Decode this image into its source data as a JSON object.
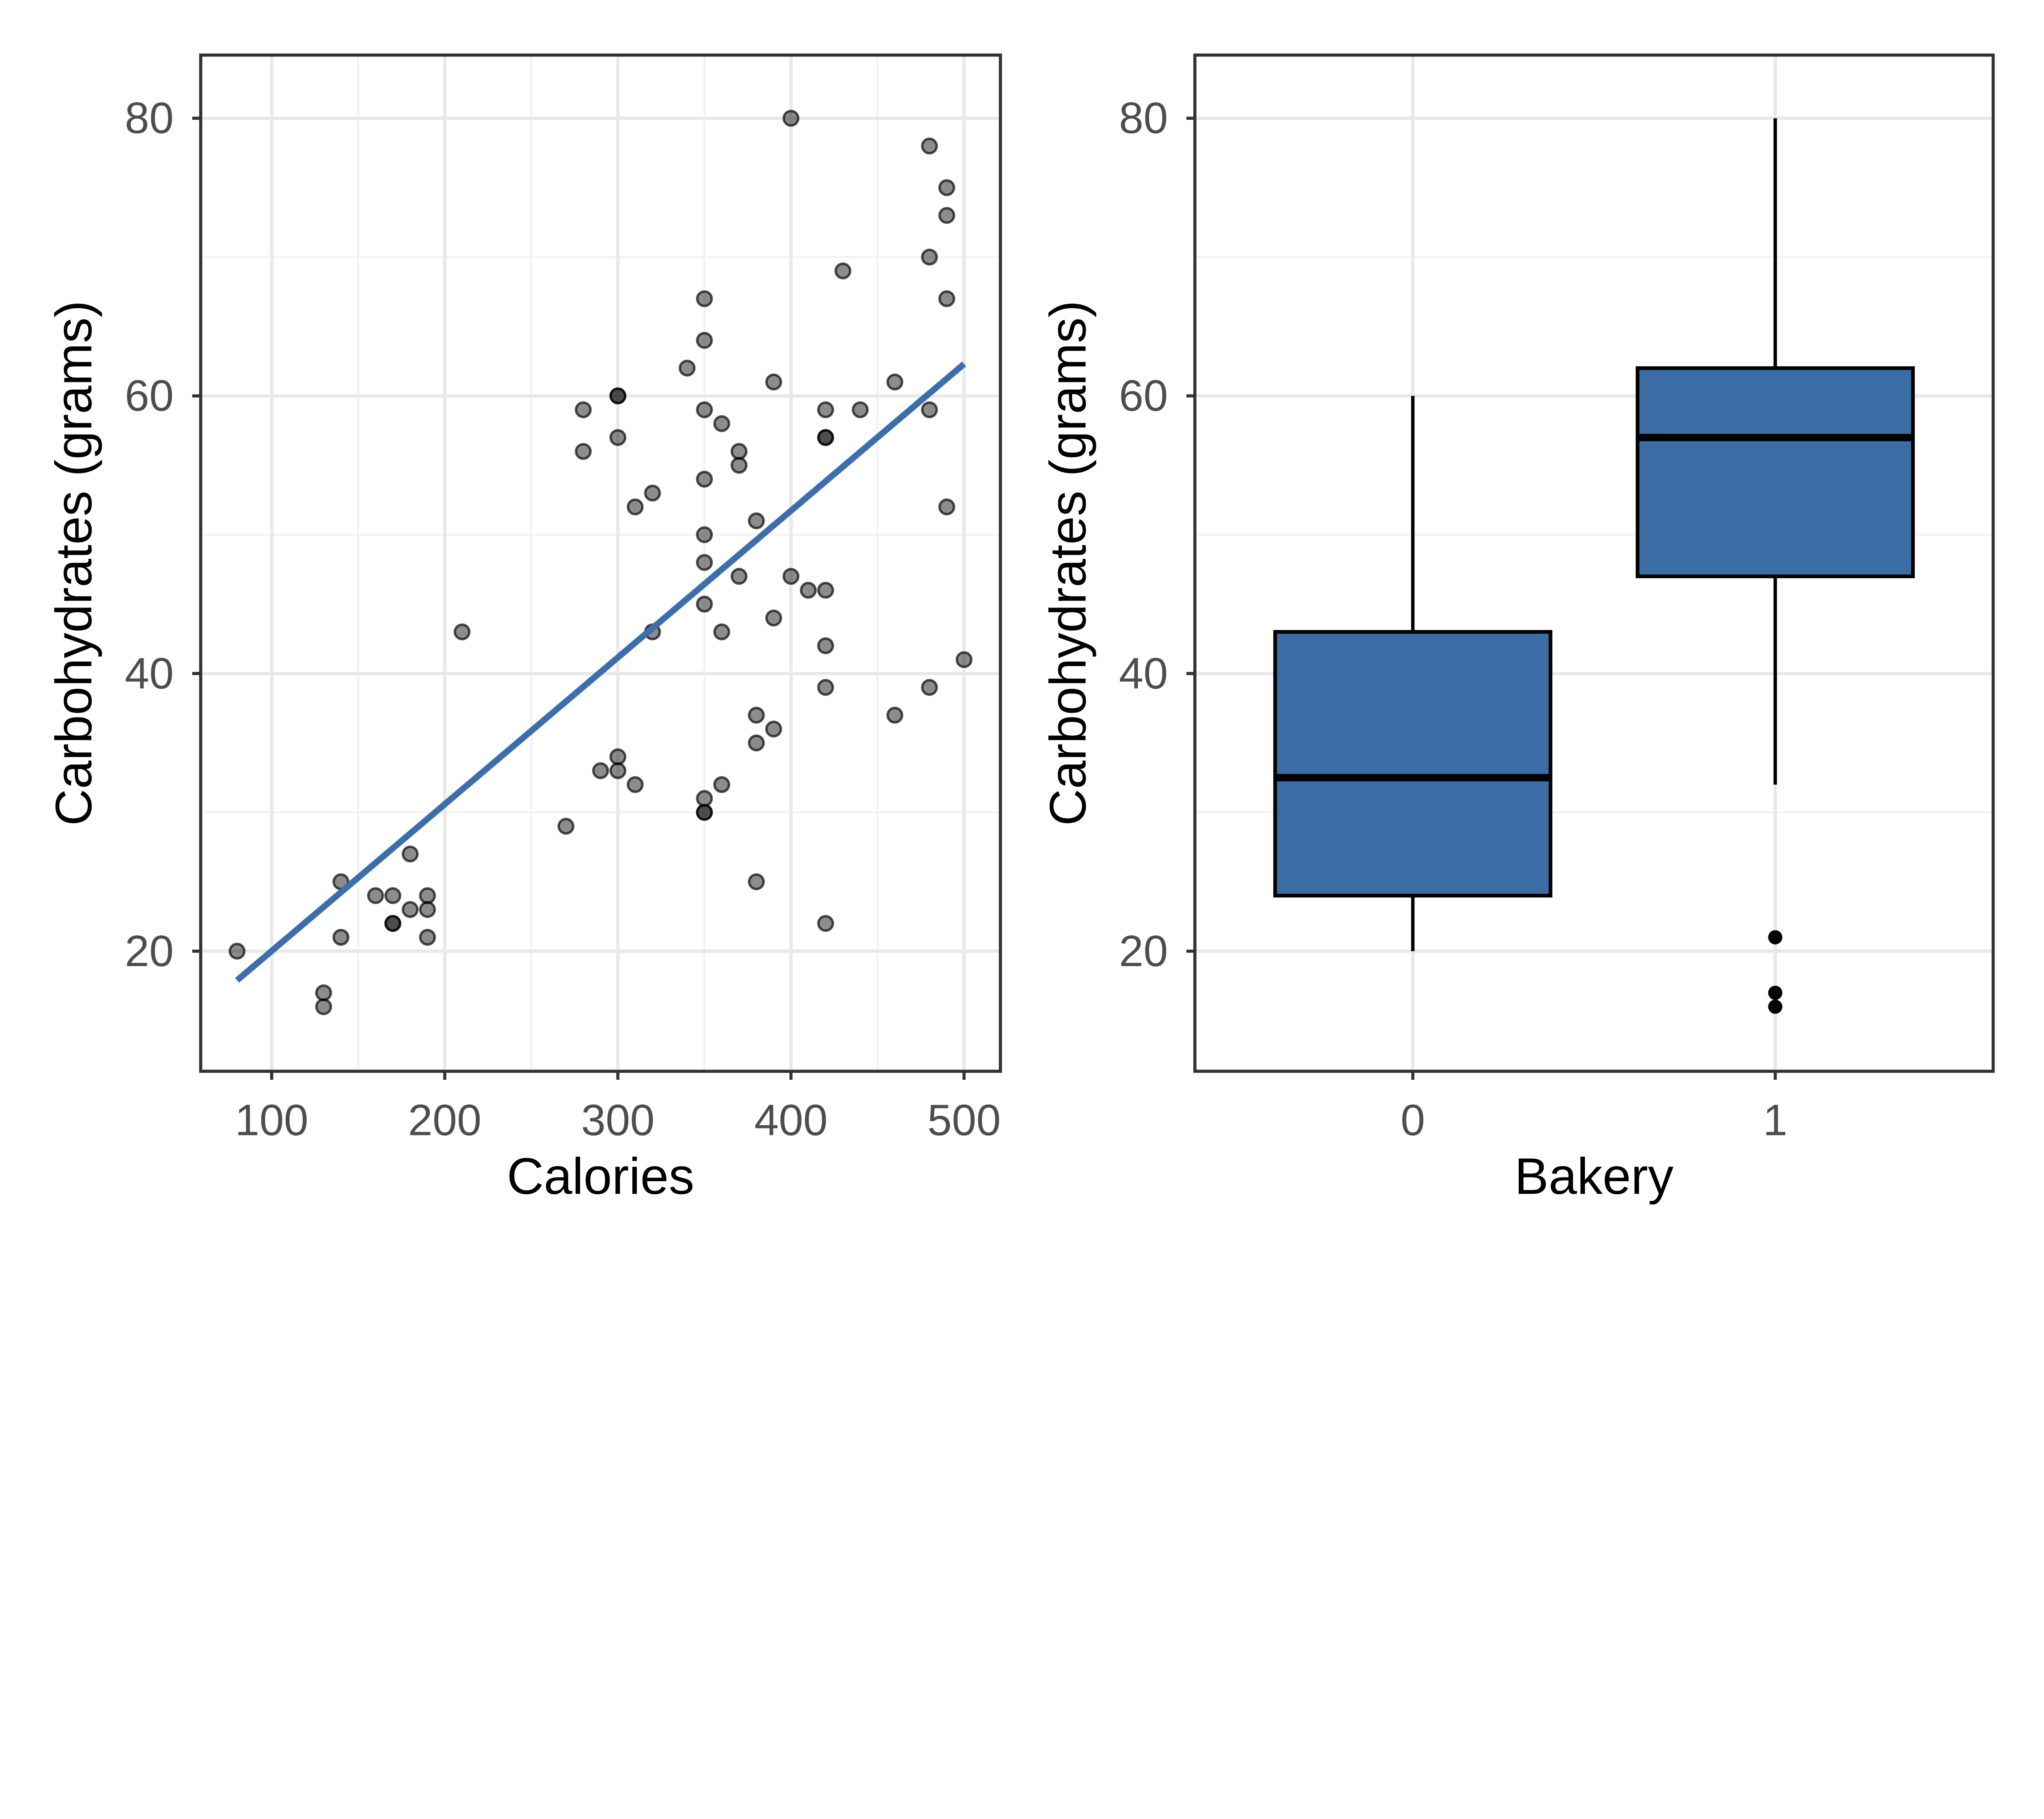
{
  "figure": {
    "background": "#FFFFFF"
  },
  "style": {
    "regression_line_color": "#3B6EAA",
    "box_fill_color": "#3B6DA5",
    "grid_major_color": "#E9E9E9",
    "grid_minor_color": "#F2F2F2",
    "panel_border_color": "#333333",
    "tick_mark_color": "#333333",
    "tick_label_color": "#4D4D4D",
    "axis_title_color": "#000000",
    "point_color": "#000000",
    "outlier_color": "#000000"
  },
  "chart_data": [
    {
      "type": "scatter",
      "title": "",
      "xlabel": "Calories",
      "ylabel": "Carbohydrates (grams)",
      "x_tick_labels": [
        "100",
        "200",
        "300",
        "400",
        "500"
      ],
      "x_ticks": [
        100,
        200,
        300,
        400,
        500
      ],
      "x_minor": [
        150,
        250,
        350,
        450
      ],
      "y_tick_labels": [
        "20",
        "40",
        "60",
        "80"
      ],
      "y_ticks": [
        20,
        40,
        60,
        80
      ],
      "y_minor": [
        30,
        50,
        70
      ],
      "xlim": [
        59,
        521
      ],
      "ylim": [
        11.35,
        84.55
      ],
      "grid": true,
      "legend": "none",
      "points": [
        [
          80,
          20
        ],
        [
          130,
          17
        ],
        [
          130,
          16
        ],
        [
          140,
          25
        ],
        [
          140,
          21
        ],
        [
          160,
          24
        ],
        [
          170,
          24
        ],
        [
          170,
          22
        ],
        [
          170,
          22
        ],
        [
          180,
          27
        ],
        [
          180,
          23
        ],
        [
          190,
          24
        ],
        [
          190,
          23
        ],
        [
          190,
          21
        ],
        [
          210,
          43
        ],
        [
          270,
          29
        ],
        [
          290,
          33
        ],
        [
          300,
          34
        ],
        [
          300,
          33
        ],
        [
          310,
          32
        ],
        [
          320,
          43
        ],
        [
          350,
          45
        ],
        [
          360,
          43
        ],
        [
          370,
          47
        ],
        [
          400,
          47
        ],
        [
          410,
          46
        ],
        [
          420,
          46
        ],
        [
          390,
          44
        ],
        [
          420,
          42
        ],
        [
          500,
          41
        ],
        [
          420,
          39
        ],
        [
          480,
          39
        ],
        [
          460,
          37
        ],
        [
          380,
          37
        ],
        [
          390,
          36
        ],
        [
          380,
          35
        ],
        [
          360,
          32
        ],
        [
          350,
          31
        ],
        [
          350,
          30
        ],
        [
          350,
          30
        ],
        [
          380,
          25
        ],
        [
          420,
          22
        ],
        [
          400,
          80
        ],
        [
          480,
          78
        ],
        [
          490,
          75
        ],
        [
          490,
          73
        ],
        [
          480,
          70
        ],
        [
          430,
          69
        ],
        [
          350,
          67
        ],
        [
          490,
          67
        ],
        [
          350,
          64
        ],
        [
          340,
          62
        ],
        [
          390,
          61
        ],
        [
          460,
          61
        ],
        [
          300,
          60
        ],
        [
          300,
          60
        ],
        [
          280,
          59
        ],
        [
          350,
          59
        ],
        [
          420,
          59
        ],
        [
          440,
          59
        ],
        [
          480,
          59
        ],
        [
          300,
          57
        ],
        [
          420,
          57
        ],
        [
          420,
          57
        ],
        [
          280,
          56
        ],
        [
          370,
          56
        ],
        [
          370,
          55
        ],
        [
          360,
          58
        ],
        [
          350,
          54
        ],
        [
          320,
          53
        ],
        [
          310,
          52
        ],
        [
          380,
          51
        ],
        [
          490,
          52
        ],
        [
          350,
          50
        ],
        [
          350,
          48
        ]
      ],
      "regression_line": {
        "x1": 80,
        "y1": 17.9,
        "x2": 500,
        "y2": 62.3
      }
    },
    {
      "type": "box",
      "title": "",
      "xlabel": "Bakery",
      "ylabel": "Carbohydrates (grams)",
      "categories": [
        "0",
        "1"
      ],
      "y_tick_labels": [
        "20",
        "40",
        "60",
        "80"
      ],
      "y_ticks": [
        20,
        40,
        60,
        80
      ],
      "y_minor": [
        30,
        50,
        70
      ],
      "ylim": [
        11.35,
        84.55
      ],
      "grid": true,
      "legend": "none",
      "boxes": [
        {
          "category": "0",
          "whisker_min": 20,
          "q1": 24,
          "median": 32.5,
          "q3": 43,
          "whisker_max": 60,
          "outliers": []
        },
        {
          "category": "1",
          "whisker_min": 32,
          "q1": 47,
          "median": 57,
          "q3": 62,
          "whisker_max": 80,
          "outliers": [
            21,
            17,
            16
          ]
        }
      ]
    }
  ]
}
